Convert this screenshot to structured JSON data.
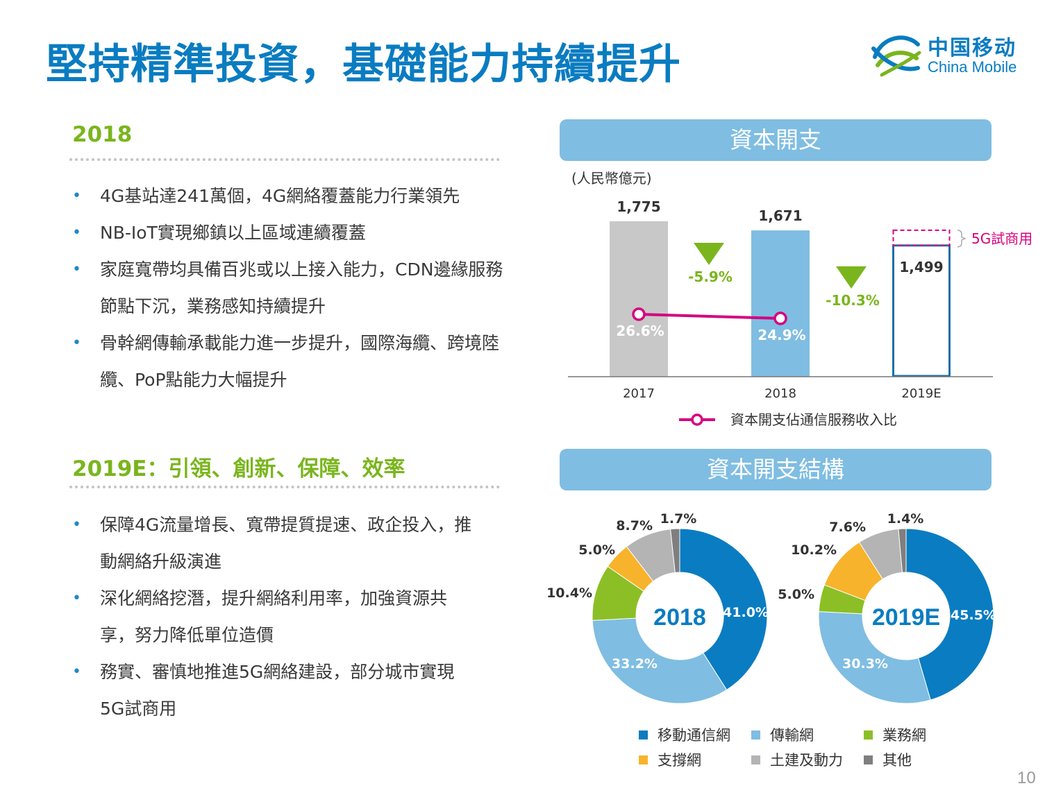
{
  "title": "堅持精準投資，基礎能力持續提升",
  "logo": {
    "cn": "中国移动",
    "en": "China Mobile"
  },
  "section_2018": {
    "heading": "2018",
    "bullets": [
      "4G基站達241萬個，4G網絡覆蓋能力行業領先",
      "NB-IoT實現鄉鎮以上區域連續覆蓋",
      "家庭寬帶均具備百兆或以上接入能力，CDN邊緣服務節點下沉，業務感知持續提升",
      "骨幹網傳輸承載能力進一步提升，國際海纜、跨境陸纜、PoP點能力大幅提升"
    ]
  },
  "section_2019": {
    "heading": "2019E：引領、創新、保障、效率",
    "bullets": [
      "保障4G流量增長、寬帶提質提速、政企投入，推動網絡升級演進",
      "深化網絡挖潛，提升網絡利用率，加強資源共享，努力降低單位造價",
      "務實、審慎地推進5G網絡建設，部分城市實現5G試商用"
    ]
  },
  "banners": {
    "capex": "資本開支",
    "structure": "資本開支結構"
  },
  "page_number": "10",
  "chart_data": [
    {
      "type": "bar",
      "unit_label": "(人民幣億元)",
      "categories": [
        "2017",
        "2018",
        "2019E"
      ],
      "values": [
        1775,
        1671,
        1499
      ],
      "value_labels": [
        "1,775",
        "1,671",
        "1,499"
      ],
      "ylim": [
        0,
        1900
      ],
      "bar_colors": [
        "#c8c8c8",
        "#7fbde2",
        "#ffffff"
      ],
      "bar_outline_color": "#1f6fa8",
      "extra_segment": {
        "category": "2019E",
        "label": "5G試商用",
        "color": "#d6007f"
      },
      "change_labels": [
        "-5.9%",
        "-10.3%"
      ],
      "change_color": "#7ab51d",
      "ratio_series": {
        "name": "資本開支佔通信服務收入比",
        "values": [
          26.6,
          24.9
        ],
        "labels": [
          "26.6%",
          "24.9%"
        ],
        "color": "#d6007f"
      }
    },
    {
      "type": "pie",
      "center_label": "2018",
      "categories": [
        "移動通信網",
        "傳輸網",
        "業務網",
        "支撐網",
        "土建及動力",
        "其他"
      ],
      "values": [
        41.0,
        33.2,
        10.4,
        5.0,
        8.7,
        1.7
      ],
      "labels": [
        "41.0%",
        "33.2%",
        "10.4%",
        "5.0%",
        "8.7%",
        "1.7%"
      ]
    },
    {
      "type": "pie",
      "center_label": "2019E",
      "categories": [
        "移動通信網",
        "傳輸網",
        "業務網",
        "支撐網",
        "土建及動力",
        "其他"
      ],
      "values": [
        45.5,
        30.3,
        5.0,
        10.2,
        7.6,
        1.4
      ],
      "labels": [
        "45.5%",
        "30.3%",
        "5.0%",
        "10.2%",
        "7.6%",
        "1.4%"
      ]
    }
  ],
  "legend": {
    "items": [
      {
        "label": "移動通信網",
        "color": "#0a7cc1"
      },
      {
        "label": "傳輸網",
        "color": "#7fbde2"
      },
      {
        "label": "業務網",
        "color": "#8cbf26"
      },
      {
        "label": "支撐網",
        "color": "#f7b32b"
      },
      {
        "label": "土建及動力",
        "color": "#b4b4b4"
      },
      {
        "label": "其他",
        "color": "#7f7f7f"
      }
    ]
  }
}
